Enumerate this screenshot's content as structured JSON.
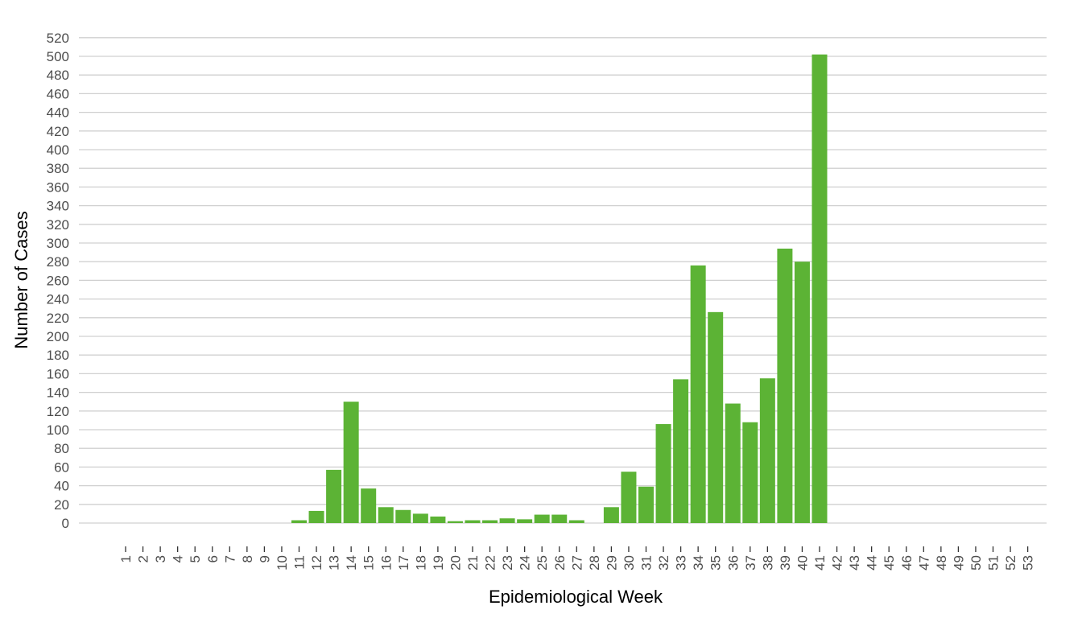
{
  "chart_data": {
    "type": "bar",
    "title": "",
    "xlabel": "Epidemiological Week",
    "ylabel": "Number of Cases",
    "ylim": [
      0,
      520
    ],
    "y_ticks": [
      0,
      20,
      40,
      60,
      80,
      100,
      120,
      140,
      160,
      180,
      200,
      220,
      240,
      260,
      280,
      300,
      320,
      340,
      360,
      380,
      400,
      420,
      440,
      460,
      480,
      500,
      520
    ],
    "grid": true,
    "legend": "none",
    "bar_color": "#5cb335",
    "categories": [
      "1",
      "2",
      "3",
      "4",
      "5",
      "6",
      "7",
      "8",
      "9",
      "10",
      "11",
      "12",
      "13",
      "14",
      "15",
      "16",
      "17",
      "18",
      "19",
      "20",
      "21",
      "22",
      "23",
      "24",
      "25",
      "26",
      "27",
      "28",
      "29",
      "30",
      "31",
      "32",
      "33",
      "34",
      "35",
      "36",
      "37",
      "38",
      "39",
      "40",
      "41",
      "42",
      "43",
      "44",
      "45",
      "46",
      "47",
      "48",
      "49",
      "50",
      "51",
      "52",
      "53"
    ],
    "values": [
      0,
      0,
      0,
      0,
      0,
      0,
      0,
      0,
      0,
      0,
      3,
      13,
      57,
      130,
      37,
      17,
      14,
      10,
      7,
      2,
      3,
      3,
      5,
      4,
      9,
      9,
      3,
      0,
      17,
      55,
      39,
      106,
      154,
      276,
      226,
      128,
      108,
      155,
      294,
      280,
      502,
      0,
      0,
      0,
      0,
      0,
      0,
      0,
      0,
      0,
      0,
      0,
      0
    ]
  }
}
